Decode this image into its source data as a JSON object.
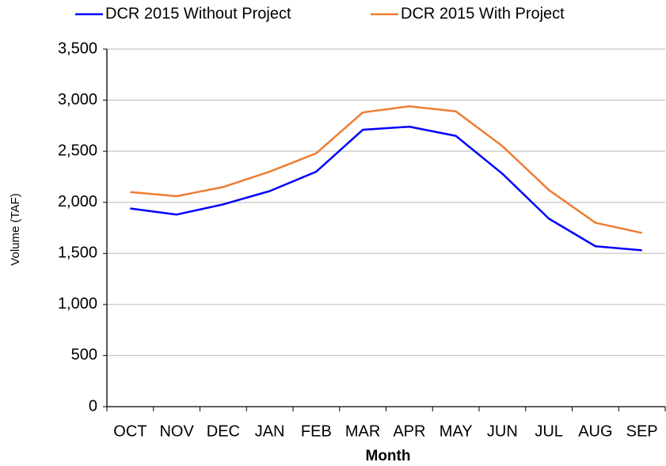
{
  "chart_data": {
    "type": "line",
    "x_label": "Month",
    "y_label": "Volume (TAF)",
    "categories": [
      "OCT",
      "NOV",
      "DEC",
      "JAN",
      "FEB",
      "MAR",
      "APR",
      "MAY",
      "JUN",
      "JUL",
      "AUG",
      "SEP"
    ],
    "series": [
      {
        "name": "DCR 2015 Without Project",
        "color": "#0000ff",
        "values": [
          1940,
          1880,
          1980,
          2110,
          2300,
          2710,
          2740,
          2650,
          2280,
          1840,
          1570,
          1530
        ]
      },
      {
        "name": "DCR 2015 With Project",
        "color": "#ed7d31",
        "values": [
          2100,
          2060,
          2150,
          2300,
          2480,
          2880,
          2940,
          2890,
          2550,
          2120,
          1800,
          1700
        ]
      }
    ],
    "ylim": [
      0,
      3500
    ],
    "yticks": [
      0,
      500,
      {
        "value": 1000,
        "label": "1,000"
      },
      {
        "value": 1500,
        "label": "1,500"
      },
      {
        "value": 2000,
        "label": "2,000"
      },
      {
        "value": 2500,
        "label": "2,500"
      },
      {
        "value": 3000,
        "label": "3,000"
      },
      {
        "value": 3500,
        "label": "3,500"
      }
    ],
    "grid": true,
    "legend": "top"
  }
}
